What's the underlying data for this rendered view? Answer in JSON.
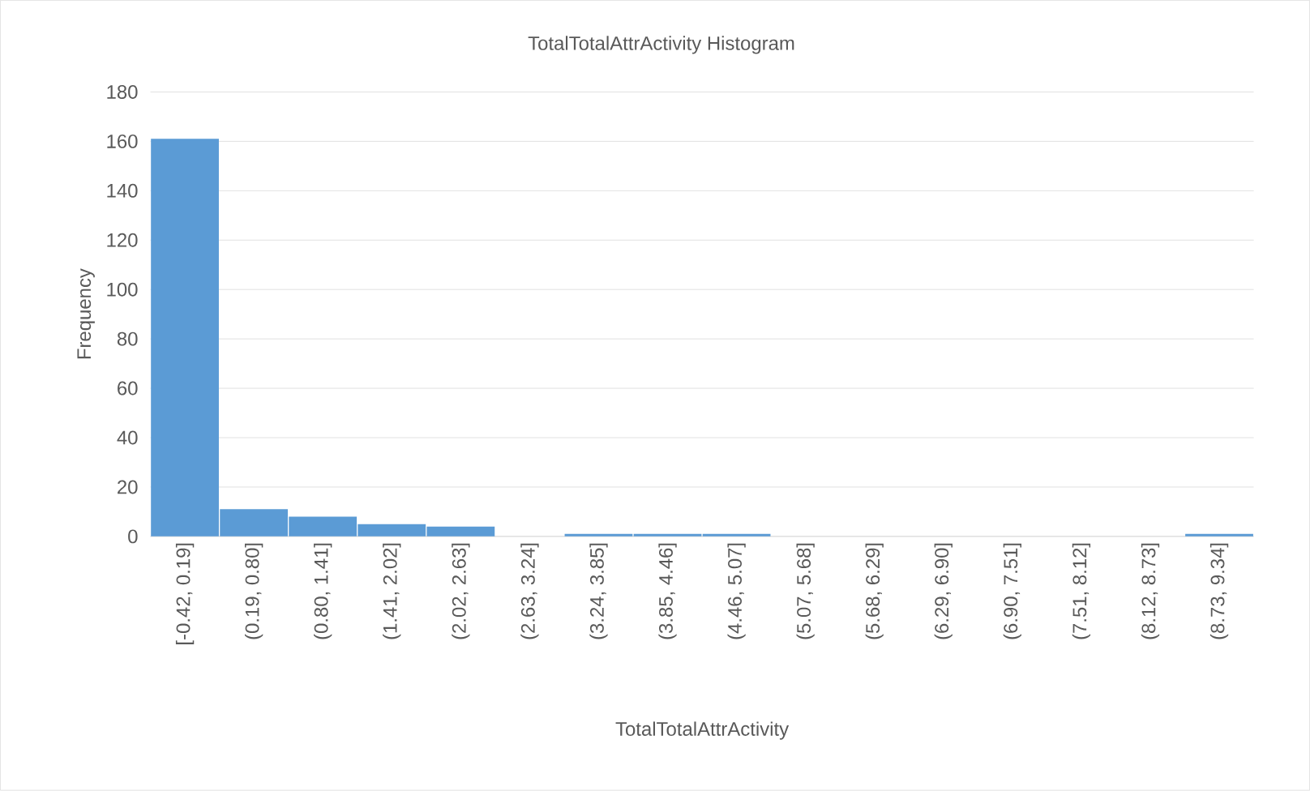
{
  "chart_data": {
    "type": "bar",
    "title": "TotalTotalAttrActivity Histogram",
    "xlabel": "TotalTotalAttrActivity",
    "ylabel": "Frequency",
    "categories": [
      "[-0.42, 0.19]",
      "(0.19, 0.80]",
      "(0.80, 1.41]",
      "(1.41, 2.02]",
      "(2.02, 2.63]",
      "(2.63, 3.24]",
      "(3.24, 3.85]",
      "(3.85, 4.46]",
      "(4.46, 5.07]",
      "(5.07, 5.68]",
      "(5.68, 6.29]",
      "(6.29, 6.90]",
      "(6.90, 7.51]",
      "(7.51, 8.12]",
      "(8.12, 8.73]",
      "(8.73, 9.34]"
    ],
    "values": [
      161,
      11,
      8,
      5,
      4,
      0,
      1,
      1,
      1,
      0,
      0,
      0,
      0,
      0,
      0,
      1
    ],
    "color": "#5b9bd5",
    "ylim": [
      0,
      180
    ],
    "yticks": [
      0,
      20,
      40,
      60,
      80,
      100,
      120,
      140,
      160,
      180
    ],
    "grid": "y"
  }
}
